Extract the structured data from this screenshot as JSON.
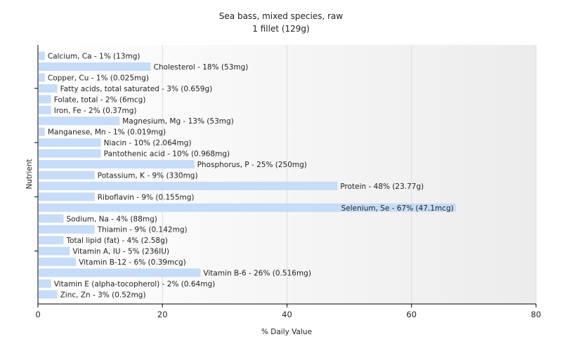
{
  "chart_data": {
    "type": "bar",
    "orientation": "horizontal",
    "title": "Sea bass, mixed species, raw",
    "subtitle": "1 fillet (129g)",
    "xlabel": "% Daily Value",
    "ylabel": "Nutrient",
    "xlim": [
      0,
      80
    ],
    "xticks": [
      0,
      20,
      40,
      60,
      80
    ],
    "grid": true,
    "bar_color": "#c6dcf7",
    "categories": [
      "Calcium, Ca",
      "Cholesterol",
      "Copper, Cu",
      "Fatty acids, total saturated",
      "Folate, total",
      "Iron, Fe",
      "Magnesium, Mg",
      "Manganese, Mn",
      "Niacin",
      "Pantothenic acid",
      "Phosphorus, P",
      "Potassium, K",
      "Protein",
      "Riboflavin",
      "Selenium, Se",
      "Sodium, Na",
      "Thiamin",
      "Total lipid (fat)",
      "Vitamin A, IU",
      "Vitamin B-12",
      "Vitamin B-6",
      "Vitamin E (alpha-tocopherol)",
      "Zinc, Zn"
    ],
    "values": [
      1,
      18,
      1,
      3,
      2,
      2,
      13,
      1,
      10,
      10,
      25,
      9,
      48,
      9,
      67,
      4,
      9,
      4,
      5,
      6,
      26,
      2,
      3
    ],
    "labels": [
      "Calcium, Ca - 1% (13mg)",
      "Cholesterol - 18% (53mg)",
      "Copper, Cu - 1% (0.025mg)",
      "Fatty acids, total saturated - 3% (0.659g)",
      "Folate, total - 2% (6mcg)",
      "Iron, Fe - 2% (0.37mg)",
      "Magnesium, Mg - 13% (53mg)",
      "Manganese, Mn - 1% (0.019mg)",
      "Niacin - 10% (2.064mg)",
      "Pantothenic acid - 10% (0.968mg)",
      "Phosphorus, P - 25% (250mg)",
      "Potassium, K - 9% (330mg)",
      "Protein - 48% (23.77g)",
      "Riboflavin - 9% (0.155mg)",
      "Selenium, Se - 67% (47.1mcg)",
      "Sodium, Na - 4% (88mg)",
      "Thiamin - 9% (0.142mg)",
      "Total lipid (fat) - 4% (2.58g)",
      "Vitamin A, IU - 5% (236IU)",
      "Vitamin B-12 - 6% (0.39mcg)",
      "Vitamin B-6 - 26% (0.516mg)",
      "Vitamin E (alpha-tocopherol) - 2% (0.64mg)",
      "Zinc, Zn - 3% (0.52mg)"
    ]
  }
}
